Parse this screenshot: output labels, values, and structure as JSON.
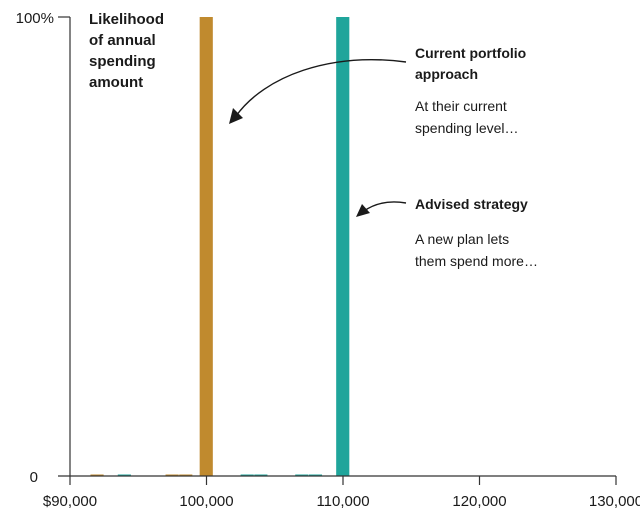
{
  "chart_data": {
    "type": "bar",
    "title_lines": [
      "Likelihood",
      "of annual",
      "spending",
      "amount"
    ],
    "xlim": [
      90000,
      130000
    ],
    "ylim": [
      0,
      100
    ],
    "x_ticks": [
      90000,
      100000,
      110000,
      120000,
      130000
    ],
    "x_tick_labels": [
      "$90,000",
      "100,000",
      "110,000",
      "120,000",
      "130,000"
    ],
    "y_ticks": [
      0,
      100
    ],
    "y_tick_labels": [
      "0",
      "100%"
    ],
    "bin_width": 1000,
    "series": [
      {
        "color": "#c08a2e",
        "bars": [
          {
            "x": 92000,
            "value": 0.3
          },
          {
            "x": 97500,
            "value": 0.3
          },
          {
            "x": 98500,
            "value": 0.3
          },
          {
            "x": 100000,
            "value": 100
          }
        ]
      },
      {
        "color": "#1fa59b",
        "bars": [
          {
            "x": 94000,
            "value": 0.3
          },
          {
            "x": 103000,
            "value": 0.3
          },
          {
            "x": 104000,
            "value": 0.3
          },
          {
            "x": 107000,
            "value": 0.3
          },
          {
            "x": 108000,
            "value": 0.3
          },
          {
            "x": 110000,
            "value": 100
          }
        ]
      }
    ],
    "annotations": [
      {
        "title_lines": [
          "Current portfolio",
          "approach"
        ],
        "text_lines": [
          "At their current",
          "spending level…"
        ]
      },
      {
        "title_lines": [
          "Advised strategy"
        ],
        "text_lines": [
          "A new plan lets",
          "them spend more…"
        ]
      }
    ]
  }
}
